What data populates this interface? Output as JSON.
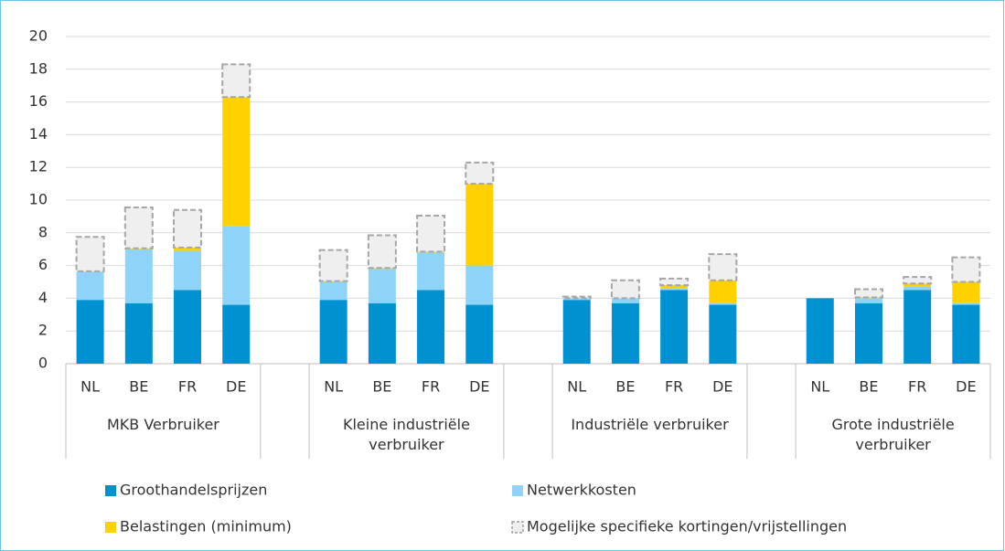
{
  "chart_data": {
    "type": "stacked_bar",
    "categories": [
      "NL",
      "BE",
      "FR",
      "DE",
      null,
      "NL",
      "BE",
      "FR",
      "DE",
      null,
      "NL",
      "BE",
      "FR",
      "DE",
      null,
      "NL",
      "BE",
      "FR",
      "DE"
    ],
    "groups": [
      "MKB Verbruiker",
      "Kleine industriële verbruiker",
      "Industriële verbruiker",
      "Grote industriële verbruiker"
    ],
    "series": [
      {
        "name": "Groothandelsprijzen",
        "color": "#0091d0",
        "values": [
          3.9,
          3.7,
          4.5,
          3.6,
          null,
          3.9,
          3.7,
          4.5,
          3.6,
          null,
          3.9,
          3.7,
          4.5,
          3.6,
          null,
          4.0,
          3.7,
          4.5,
          3.6
        ]
      },
      {
        "name": "Netwerkkosten",
        "color": "#8ed4f8",
        "values": [
          1.7,
          3.3,
          2.4,
          4.8,
          null,
          1.1,
          2.1,
          2.3,
          2.4,
          null,
          0.1,
          0.3,
          0.1,
          0.1,
          null,
          0,
          0.3,
          0.2,
          0.1
        ]
      },
      {
        "name": "Belastingen (minimum)",
        "color": "#ffd100",
        "values": [
          0.05,
          0.05,
          0.2,
          7.9,
          null,
          0.05,
          0.05,
          0.05,
          5.0,
          null,
          0,
          0,
          0.2,
          1.4,
          null,
          0,
          0.05,
          0.2,
          1.3
        ]
      },
      {
        "name": "Mogelijke specifieke kortingen/vrijstellingen",
        "color": "#efefef",
        "dashed": true,
        "values": [
          2.1,
          2.5,
          2.3,
          2.0,
          null,
          1.9,
          2.0,
          2.2,
          1.3,
          null,
          0.1,
          1.1,
          0.4,
          1.6,
          null,
          0,
          0.5,
          0.4,
          1.5
        ]
      }
    ],
    "ylim": [
      0,
      20
    ],
    "yticks": [
      0,
      2,
      4,
      6,
      8,
      10,
      12,
      14,
      16,
      18,
      20
    ],
    "grid": true
  }
}
